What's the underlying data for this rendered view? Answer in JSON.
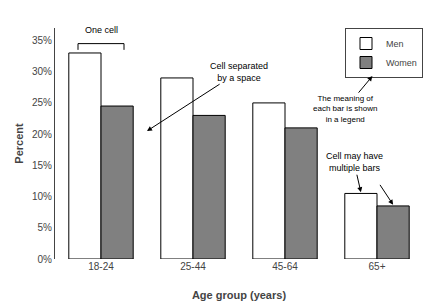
{
  "chart_data": {
    "type": "bar",
    "categories": [
      "18-24",
      "25-44",
      "45-64",
      "65+"
    ],
    "series": [
      {
        "name": "Men",
        "color": "#FFFFFF",
        "values": [
          33,
          29,
          25,
          10.5
        ]
      },
      {
        "name": "Women",
        "color": "#808080",
        "values": [
          24.5,
          23,
          21,
          8.5
        ]
      }
    ],
    "xlabel": "Age group (years)",
    "ylabel": "Percent",
    "ylim": [
      0,
      37
    ],
    "yticks": [
      {
        "value": 0,
        "label": "0%"
      },
      {
        "value": 5,
        "label": "5%"
      },
      {
        "value": 10,
        "label": "10%"
      },
      {
        "value": 15,
        "label": "15%"
      },
      {
        "value": 20,
        "label": "20%"
      },
      {
        "value": 25,
        "label": "25%"
      },
      {
        "value": 30,
        "label": "30%"
      },
      {
        "value": 35,
        "label": "35%"
      }
    ],
    "grid": false,
    "legend": "upper right",
    "annotations": [
      "One cell",
      "Cell separated\nby a space",
      "The meaning of\neach bar is shown\nin a legend",
      "Cell may have\nmultiple bars"
    ]
  }
}
